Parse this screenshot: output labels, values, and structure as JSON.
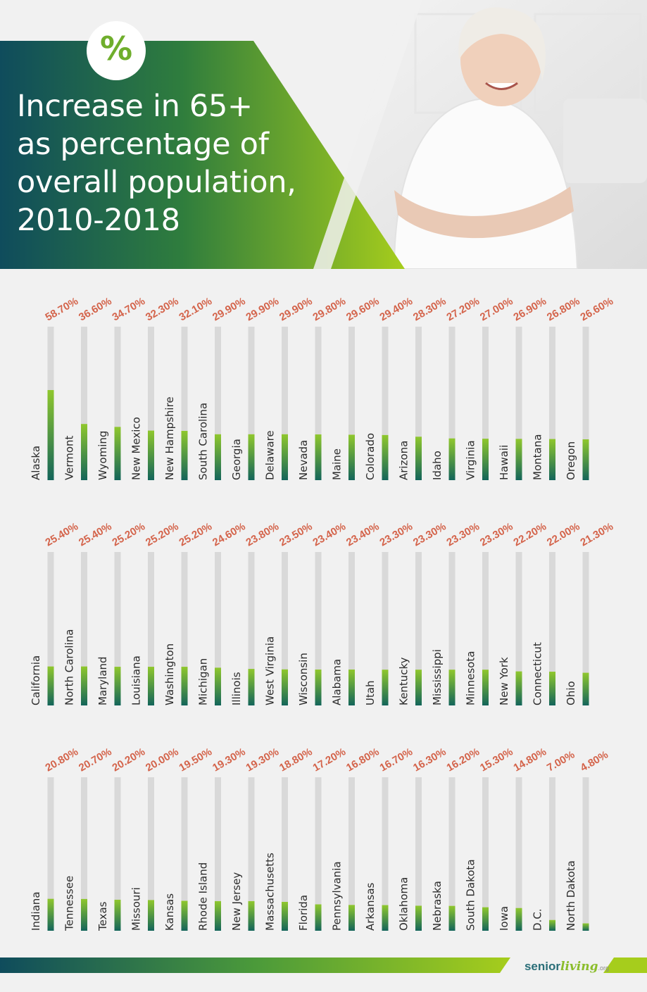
{
  "header": {
    "title_lines": [
      "Increase in 65+",
      "as percentage of",
      "overall population,",
      "2010-2018"
    ],
    "badge_symbol": "%"
  },
  "logo": {
    "part1": "senior",
    "part2": "living",
    "part3": ".org"
  },
  "colors": {
    "bar_fill_dark": "#13655a",
    "bar_fill_light": "#8fc72d",
    "bar_track": "#d9d9d9",
    "value_text": "#d4644b",
    "header_dark": "#0f4c5c",
    "header_light": "#9cc91e"
  },
  "chart_data": {
    "type": "bar",
    "ylim": [
      0,
      100
    ],
    "series": [
      {
        "values": [
          58.7,
          36.6,
          34.7,
          32.3,
          32.1,
          29.9,
          29.9,
          29.9,
          29.8,
          29.6,
          29.4,
          28.3,
          27.2,
          27.0,
          26.9,
          26.8,
          26.6,
          25.4,
          25.4,
          25.2,
          25.2,
          25.2,
          24.6,
          23.8,
          23.5,
          23.4,
          23.4,
          23.3,
          23.3,
          23.3,
          23.3,
          22.2,
          22.0,
          21.3,
          20.8,
          20.7,
          20.2,
          20.0,
          19.5,
          19.3,
          19.3,
          18.8,
          17.2,
          16.8,
          16.7,
          16.3,
          16.2,
          15.3,
          14.8,
          7.0,
          4.8
        ]
      }
    ],
    "categories": [
      "Alaska",
      "Vermont",
      "Wyoming",
      "New Mexico",
      "New Hampshire",
      "South Carolina",
      "Georgia",
      "Delaware",
      "Nevada",
      "Maine",
      "Colorado",
      "Arizona",
      "Idaho",
      "Virginia",
      "Hawaii",
      "Montana",
      "Oregon",
      "California",
      "North Carolina",
      "Maryland",
      "Louisiana",
      "Washington",
      "Michigan",
      "Illinois",
      "West Virginia",
      "Wisconsin",
      "Alabama",
      "Utah",
      "Kentucky",
      "Mississippi",
      "Minnesota",
      "New York",
      "Connecticut",
      "Ohio",
      "Indiana",
      "Tennessee",
      "Texas",
      "Missouri",
      "Kansas",
      "Rhode Island",
      "New Jersey",
      "Massachusetts",
      "Florida",
      "Pennsylvania",
      "Arkansas",
      "Oklahoma",
      "Nebraska",
      "South Dakota",
      "Iowa",
      "D.C.",
      "North Dakota"
    ],
    "value_labels": [
      "58.70%",
      "36.60%",
      "34.70%",
      "32.30%",
      "32.10%",
      "29.90%",
      "29.90%",
      "29.90%",
      "29.80%",
      "29.60%",
      "29.40%",
      "28.30%",
      "27.20%",
      "27.00%",
      "26.90%",
      "26.80%",
      "26.60%",
      "25.40%",
      "25.40%",
      "25.20%",
      "25.20%",
      "25.20%",
      "24.60%",
      "23.80%",
      "23.50%",
      "23.40%",
      "23.40%",
      "23.30%",
      "23.30%",
      "23.30%",
      "23.30%",
      "22.20%",
      "22.00%",
      "21.30%",
      "20.80%",
      "20.70%",
      "20.20%",
      "20.00%",
      "19.50%",
      "19.30%",
      "19.30%",
      "18.80%",
      "17.20%",
      "16.80%",
      "16.70%",
      "16.30%",
      "16.20%",
      "15.30%",
      "14.80%",
      "7.00%",
      "4.80%"
    ]
  }
}
